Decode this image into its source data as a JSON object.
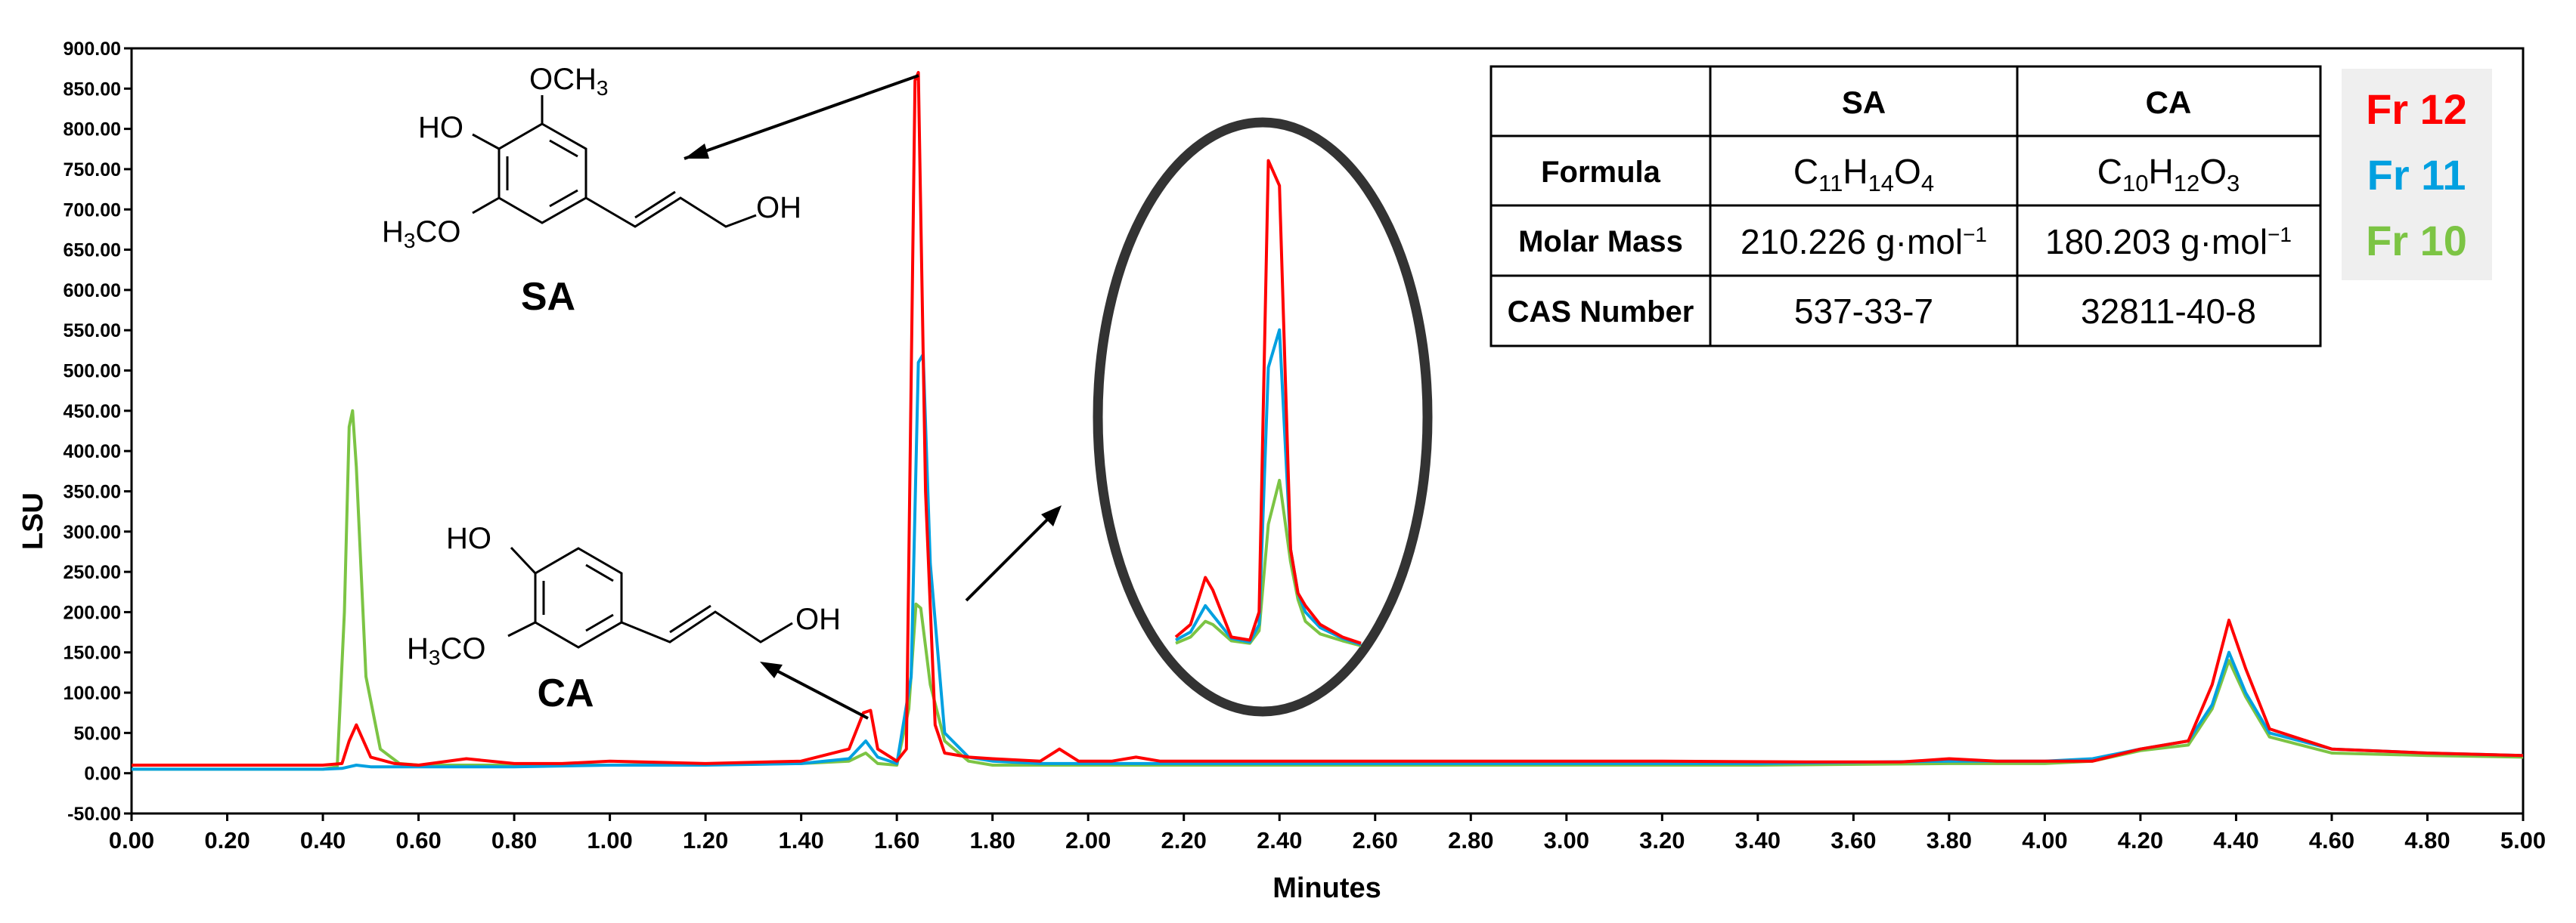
{
  "chart_data": {
    "type": "line",
    "title": "",
    "xlabel": "Minutes",
    "ylabel": "LSU",
    "xlim": [
      0,
      5
    ],
    "ylim": [
      -50,
      900
    ],
    "x_ticks": [
      "0.00",
      "0.20",
      "0.40",
      "0.60",
      "0.80",
      "1.00",
      "1.20",
      "1.40",
      "1.60",
      "1.80",
      "2.00",
      "2.20",
      "2.40",
      "2.60",
      "2.80",
      "3.00",
      "3.20",
      "3.40",
      "3.60",
      "3.80",
      "4.00",
      "4.20",
      "4.40",
      "4.60",
      "4.80",
      "5.00"
    ],
    "y_ticks": [
      "-50.00",
      "0.00",
      "50.00",
      "100.00",
      "150.00",
      "200.00",
      "250.00",
      "300.00",
      "350.00",
      "400.00",
      "450.00",
      "500.00",
      "550.00",
      "600.00",
      "650.00",
      "700.00",
      "750.00",
      "800.00",
      "850.00",
      "900.00"
    ],
    "grid": false,
    "legend_position": "top-right",
    "series": [
      {
        "name": "Fr 12",
        "color": "#ff0000",
        "x": [
          0,
          0.2,
          0.4,
          0.44,
          0.455,
          0.47,
          0.5,
          0.55,
          0.6,
          0.7,
          0.8,
          0.9,
          1.0,
          1.2,
          1.4,
          1.5,
          1.53,
          1.545,
          1.56,
          1.6,
          1.62,
          1.638,
          1.645,
          1.66,
          1.68,
          1.7,
          1.75,
          1.8,
          1.9,
          1.94,
          1.98,
          2.05,
          2.1,
          2.15,
          2.3,
          2.6,
          2.8,
          3.0,
          3.2,
          3.5,
          3.7,
          3.8,
          3.9,
          4.0,
          4.1,
          4.2,
          4.3,
          4.35,
          4.385,
          4.42,
          4.47,
          4.6,
          4.8,
          5.0
        ],
        "y": [
          10,
          10,
          10,
          12,
          40,
          60,
          20,
          12,
          10,
          18,
          12,
          12,
          15,
          12,
          15,
          30,
          75,
          78,
          30,
          15,
          30,
          860,
          870,
          350,
          60,
          25,
          20,
          18,
          15,
          30,
          15,
          15,
          20,
          15,
          15,
          15,
          15,
          15,
          15,
          14,
          14,
          18,
          15,
          15,
          15,
          30,
          40,
          110,
          190,
          130,
          55,
          30,
          25,
          22
        ]
      },
      {
        "name": "Fr 11",
        "color": "#00a0e0",
        "x": [
          0,
          0.2,
          0.4,
          0.44,
          0.47,
          0.5,
          0.6,
          0.8,
          1.0,
          1.2,
          1.4,
          1.5,
          1.535,
          1.56,
          1.6,
          1.63,
          1.645,
          1.655,
          1.67,
          1.7,
          1.75,
          1.8,
          1.9,
          2.0,
          2.2,
          2.6,
          3.0,
          3.4,
          3.8,
          4.0,
          4.1,
          4.2,
          4.3,
          4.35,
          4.385,
          4.42,
          4.47,
          4.6,
          4.8,
          5.0
        ],
        "y": [
          5,
          5,
          5,
          6,
          10,
          8,
          8,
          8,
          10,
          10,
          12,
          18,
          40,
          20,
          12,
          120,
          510,
          520,
          260,
          50,
          20,
          15,
          12,
          12,
          12,
          12,
          12,
          12,
          15,
          15,
          18,
          30,
          40,
          85,
          150,
          100,
          50,
          30,
          25,
          22
        ]
      },
      {
        "name": "Fr 10",
        "color": "#7cc444",
        "x": [
          0,
          0.2,
          0.4,
          0.43,
          0.445,
          0.455,
          0.462,
          0.47,
          0.49,
          0.52,
          0.56,
          0.6,
          0.8,
          1.0,
          1.4,
          1.5,
          1.535,
          1.56,
          1.6,
          1.625,
          1.64,
          1.65,
          1.67,
          1.7,
          1.75,
          1.8,
          2.0,
          2.4,
          3.0,
          3.4,
          3.8,
          4.0,
          4.1,
          4.2,
          4.3,
          4.35,
          4.385,
          4.42,
          4.47,
          4.6,
          4.8,
          5.0
        ],
        "y": [
          5,
          5,
          5,
          8,
          200,
          430,
          450,
          380,
          120,
          30,
          12,
          10,
          10,
          10,
          12,
          15,
          25,
          12,
          10,
          80,
          210,
          205,
          110,
          40,
          15,
          10,
          10,
          10,
          10,
          10,
          12,
          12,
          15,
          28,
          35,
          80,
          140,
          95,
          45,
          25,
          22,
          20
        ]
      }
    ],
    "inset": {
      "x": [
        0,
        0.08,
        0.16,
        0.2,
        0.3,
        0.4,
        0.45,
        0.5,
        0.56,
        0.62,
        0.66,
        0.7,
        0.78,
        0.9,
        1.0
      ],
      "series": [
        {
          "name": "Fr 12",
          "y": [
            20,
            40,
            115,
            95,
            20,
            15,
            60,
            780,
            740,
            160,
            90,
            70,
            40,
            20,
            10
          ]
        },
        {
          "name": "Fr 11",
          "y": [
            15,
            28,
            70,
            55,
            18,
            12,
            40,
            450,
            510,
            160,
            90,
            60,
            35,
            18,
            8
          ]
        },
        {
          "name": "Fr 10",
          "y": [
            10,
            20,
            45,
            40,
            14,
            10,
            30,
            200,
            270,
            140,
            80,
            45,
            25,
            14,
            6
          ]
        }
      ]
    },
    "annotations": [
      {
        "label": "SA",
        "arrow_from_x": 1.64,
        "arrow_from_y": 870
      },
      {
        "label": "CA",
        "arrow_from_x": 1.54,
        "arrow_from_y": 78
      }
    ]
  },
  "molecules": {
    "sa": {
      "label": "SA",
      "sub_och3_top": "OCH",
      "sub_3": "3",
      "ho": "HO",
      "h3co_left": "H",
      "h3co_3": "3",
      "h3co_right": "CO",
      "oh": "OH"
    },
    "ca": {
      "label": "CA",
      "ho": "HO",
      "h3co_left": "H",
      "h3co_3": "3",
      "h3co_right": "CO",
      "oh": "OH"
    }
  },
  "table": {
    "headers": [
      "",
      "SA",
      "CA"
    ],
    "row_labels": [
      "Formula",
      "Molar Mass",
      "CAS Number"
    ],
    "sa_formula": {
      "c": "C",
      "c_n": "11",
      "h": "H",
      "h_n": "14",
      "o": "O",
      "o_n": "4"
    },
    "ca_formula": {
      "c": "C",
      "c_n": "10",
      "h": "H",
      "h_n": "12",
      "o": "O",
      "o_n": "3"
    },
    "sa_mass": "210.226 g·mol",
    "ca_mass": "180.203 g·mol",
    "mass_exp": "−1",
    "sa_cas": "537-33-7",
    "ca_cas": "32811-40-8"
  },
  "legend": [
    {
      "label": "Fr 12",
      "color": "#ff0000"
    },
    {
      "label": "Fr 11",
      "color": "#00a0e0"
    },
    {
      "label": "Fr 10",
      "color": "#7cc444"
    }
  ]
}
